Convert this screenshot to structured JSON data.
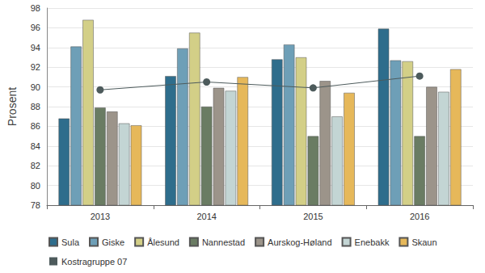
{
  "chart_data": {
    "type": "bar",
    "y_label": "Prosent",
    "categories": [
      "2013",
      "2014",
      "2015",
      "2016"
    ],
    "ylim": [
      78,
      98
    ],
    "yticks": [
      78,
      80,
      82,
      84,
      86,
      88,
      90,
      92,
      94,
      96,
      98
    ],
    "grid": true,
    "legend": "bottom-left",
    "series": [
      {
        "name": "Sula",
        "color": "#2e6d8c",
        "values": [
          86.8,
          91.1,
          92.8,
          95.9
        ]
      },
      {
        "name": "Giske",
        "color": "#6e9fb7",
        "values": [
          94.1,
          93.9,
          94.3,
          92.7
        ]
      },
      {
        "name": "Ålesund",
        "color": "#d3cf87",
        "values": [
          96.8,
          95.5,
          93.0,
          92.6
        ]
      },
      {
        "name": "Nannestad",
        "color": "#6a7c63",
        "values": [
          87.9,
          88.0,
          85.0,
          85.0
        ]
      },
      {
        "name": "Aurskog-Høland",
        "color": "#9c948a",
        "values": [
          87.5,
          89.9,
          90.6,
          90.0
        ]
      },
      {
        "name": "Enebakk",
        "color": "#c3d5d4",
        "values": [
          86.3,
          89.6,
          87.0,
          89.5
        ]
      },
      {
        "name": "Skaun",
        "color": "#e6b85a",
        "values": [
          86.1,
          91.0,
          89.4,
          91.8
        ]
      },
      {
        "name": "Kostragruppe 07",
        "type": "line",
        "marker": "circle",
        "color": "#4d5b5c",
        "values": [
          89.7,
          90.5,
          89.9,
          91.1
        ]
      }
    ]
  }
}
